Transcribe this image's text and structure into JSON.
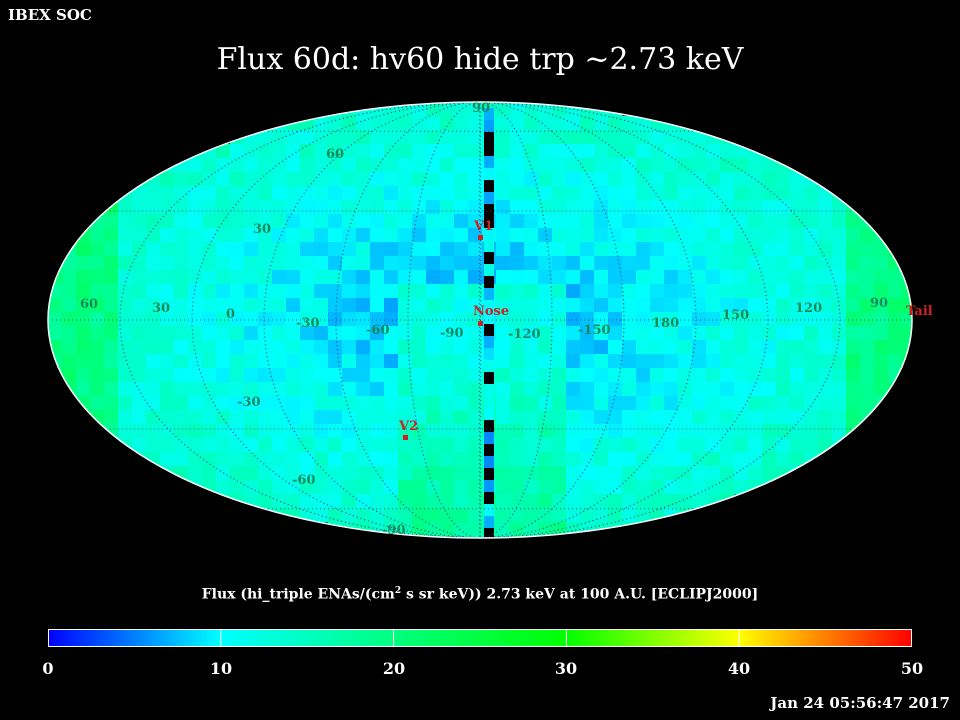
{
  "header": {
    "soc_label": "IBEX SOC",
    "title": "Flux   60d: hv60 hide trp ~2.73 keV"
  },
  "map": {
    "projection": "Mollweide / Aitoff all-sky",
    "lat_labels": [
      "90",
      "60",
      "30",
      "-30",
      "-60",
      "-90"
    ],
    "lon_labels": [
      "60",
      "30",
      "0",
      "-30",
      "-60",
      "-90",
      "-120",
      "-150",
      "180",
      "150",
      "120",
      "90"
    ],
    "markers": {
      "v1": "V1",
      "v2": "V2",
      "nose": "Nose",
      "tail": "Tail"
    },
    "colors": {
      "marker": "#d02020",
      "grid_label": "#1a8a5a"
    }
  },
  "colorbar": {
    "label_main": "Flux (hi_triple ENAs/(cm",
    "label_sup": "2",
    "label_rest": " s sr keV))  2.73 keV at 100 A.U. [ECLIPJ2000]",
    "ticks": [
      "0",
      "10",
      "20",
      "30",
      "40",
      "50"
    ],
    "min": 0,
    "max": 50
  },
  "footer": {
    "timestamp": "Jan 24 05:56:47 2017"
  }
}
